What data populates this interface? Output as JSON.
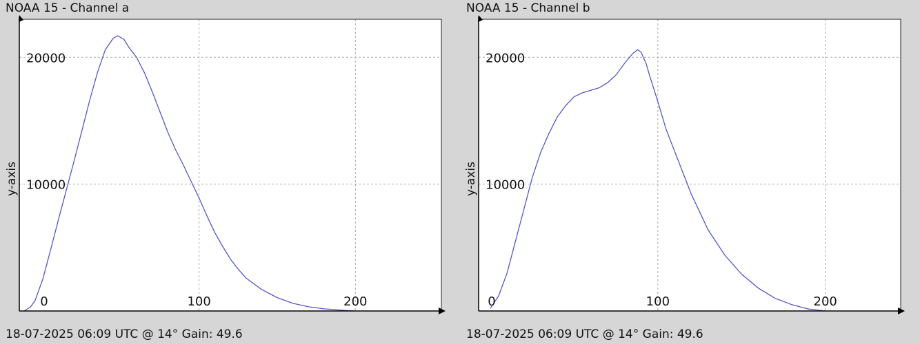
{
  "panels": [
    {
      "title": "NOAA 15 - Channel a",
      "footer": "18-07-2025 06:09 UTC @ 14° Gain: 49.6"
    },
    {
      "title": "NOAA 15 - Channel b",
      "footer": "18-07-2025 06:09 UTC @ 14° Gain: 49.6"
    }
  ],
  "chart_data": [
    {
      "type": "line",
      "title": "NOAA 15 - Channel a",
      "xlabel": "",
      "ylabel": "y-axis",
      "xlim": [
        -15,
        255
      ],
      "ylim": [
        0,
        23000
      ],
      "xticks": [
        "0",
        "100",
        "200"
      ],
      "xtick_values": [
        0,
        100,
        200
      ],
      "yticks": [
        "10000",
        "20000"
      ],
      "ytick_values": [
        10000,
        20000
      ],
      "grid": true,
      "line_color": "#5555cc",
      "series": [
        {
          "x": [
            -12,
            -8,
            -5,
            0,
            5,
            10,
            15,
            20,
            25,
            30,
            35,
            40,
            45,
            48,
            52,
            55,
            60,
            65,
            70,
            75,
            80,
            85,
            90,
            95,
            100,
            105,
            110,
            115,
            120,
            125,
            130,
            140,
            150,
            160,
            170,
            180,
            190,
            200
          ],
          "values": [
            0,
            300,
            800,
            2500,
            4800,
            7200,
            9500,
            11800,
            14200,
            16600,
            18800,
            20600,
            21500,
            21700,
            21400,
            20800,
            20000,
            18800,
            17300,
            15700,
            14100,
            12700,
            11500,
            10200,
            8900,
            7500,
            6200,
            5100,
            4100,
            3300,
            2600,
            1700,
            1050,
            600,
            330,
            170,
            70,
            0
          ]
        }
      ]
    },
    {
      "type": "line",
      "title": "NOAA 15 - Channel b",
      "xlabel": "",
      "ylabel": "y-axis",
      "xlim": [
        -7,
        245
      ],
      "ylim": [
        0,
        23000
      ],
      "xticks": [
        "0",
        "100",
        "200"
      ],
      "xtick_values": [
        0,
        100,
        200
      ],
      "yticks": [
        "10000",
        "20000"
      ],
      "ytick_values": [
        10000,
        20000
      ],
      "grid": true,
      "line_color": "#5555cc",
      "series": [
        {
          "x": [
            0,
            5,
            10,
            15,
            20,
            25,
            30,
            35,
            40,
            45,
            50,
            55,
            60,
            65,
            70,
            75,
            80,
            85,
            88,
            90,
            93,
            95,
            100,
            105,
            110,
            115,
            120,
            125,
            130,
            140,
            150,
            160,
            170,
            180,
            190,
            200
          ],
          "values": [
            200,
            1200,
            3000,
            5500,
            8000,
            10500,
            12500,
            14000,
            15300,
            16200,
            16900,
            17200,
            17400,
            17600,
            18000,
            18600,
            19500,
            20300,
            20600,
            20400,
            19500,
            18600,
            16500,
            14300,
            12600,
            10900,
            9200,
            7800,
            6400,
            4400,
            2900,
            1800,
            1000,
            500,
            150,
            0
          ]
        }
      ]
    }
  ]
}
